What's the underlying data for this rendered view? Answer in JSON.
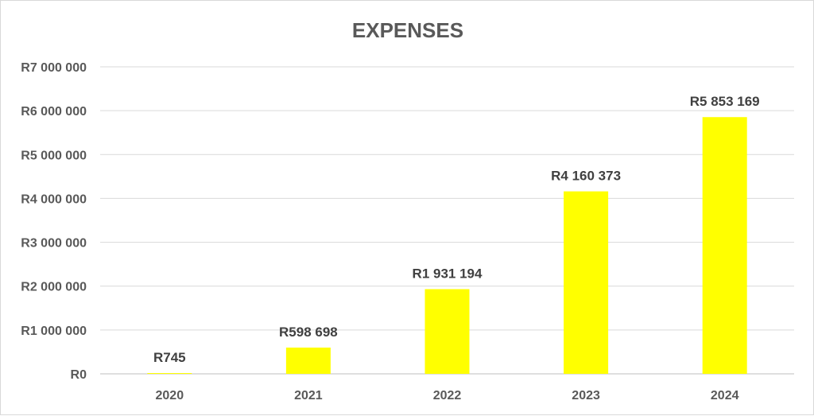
{
  "chart_data": {
    "type": "bar",
    "title": "EXPENSES",
    "categories": [
      "2020",
      "2021",
      "2022",
      "2023",
      "2024"
    ],
    "values": [
      745,
      598698,
      1931194,
      4160373,
      5853169
    ],
    "data_labels": [
      "R745",
      "R598 698",
      "R1 931 194",
      "R4 160 373",
      "R5 853 169"
    ],
    "ylim": [
      0,
      7000000
    ],
    "yticks": [
      0,
      1000000,
      2000000,
      3000000,
      4000000,
      5000000,
      6000000,
      7000000
    ],
    "ytick_labels": [
      "R0",
      "R1 000 000",
      "R2 000 000",
      "R3 000 000",
      "R4 000 000",
      "R5 000 000",
      "R6 000 000",
      "R7 000 000"
    ],
    "grid": true,
    "bar_color": "#ffff00"
  }
}
